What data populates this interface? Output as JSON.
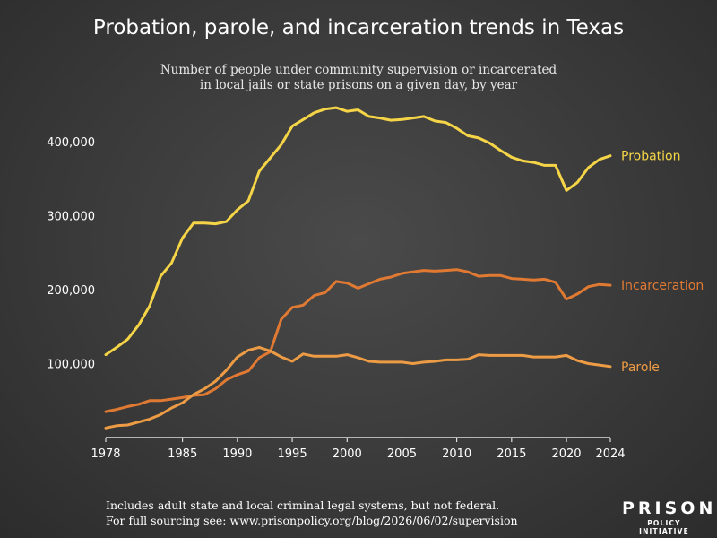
{
  "title": "Probation, parole, and incarceration trends in Texas",
  "subtitle_line1": "Number of people under community supervision or incarcerated",
  "subtitle_line2": "in local jails or state prisons on a given day, by year",
  "footer_line1": "Includes adult state and local criminal legal systems, but not federal.",
  "footer_line2": "For full sourcing see: www.prisonpolicy.org/blog/2026/06/02/supervision",
  "logo": {
    "main": "PRISON",
    "sub": "POLICY INITIATIVE"
  },
  "colors": {
    "probation": "#f5d547",
    "incarceration": "#e07a33",
    "parole": "#ed9c45",
    "text": "#ffffff"
  },
  "chart_data": {
    "type": "line",
    "xlim": [
      1978,
      2024
    ],
    "ylim": [
      0,
      470000
    ],
    "x_ticks": [
      "1978",
      "1985",
      "1990",
      "1995",
      "2000",
      "2005",
      "2010",
      "2015",
      "2020",
      "2024"
    ],
    "y_ticks": [
      "100,000",
      "200,000",
      "300,000",
      "400,000"
    ],
    "series": [
      {
        "name": "Probation",
        "key": "probation",
        "points": [
          [
            1978,
            112000
          ],
          [
            1979,
            122000
          ],
          [
            1980,
            133000
          ],
          [
            1981,
            152000
          ],
          [
            1982,
            178000
          ],
          [
            1983,
            218000
          ],
          [
            1984,
            236000
          ],
          [
            1985,
            270000
          ],
          [
            1986,
            290000
          ],
          [
            1987,
            290000
          ],
          [
            1988,
            289000
          ],
          [
            1989,
            292000
          ],
          [
            1990,
            308000
          ],
          [
            1991,
            320000
          ],
          [
            1992,
            360000
          ],
          [
            1993,
            378000
          ],
          [
            1994,
            396000
          ],
          [
            1995,
            421000
          ],
          [
            1996,
            430000
          ],
          [
            1997,
            439000
          ],
          [
            1998,
            444000
          ],
          [
            1999,
            446000
          ],
          [
            2000,
            441000
          ],
          [
            2001,
            443000
          ],
          [
            2002,
            434000
          ],
          [
            2003,
            432000
          ],
          [
            2004,
            429000
          ],
          [
            2005,
            430000
          ],
          [
            2006,
            432000
          ],
          [
            2007,
            434000
          ],
          [
            2008,
            428000
          ],
          [
            2009,
            426000
          ],
          [
            2010,
            418000
          ],
          [
            2011,
            408000
          ],
          [
            2012,
            405000
          ],
          [
            2013,
            398000
          ],
          [
            2014,
            388000
          ],
          [
            2015,
            379000
          ],
          [
            2016,
            374000
          ],
          [
            2017,
            372000
          ],
          [
            2018,
            368000
          ],
          [
            2019,
            368000
          ],
          [
            2020,
            334000
          ],
          [
            2021,
            345000
          ],
          [
            2022,
            365000
          ],
          [
            2023,
            376000
          ],
          [
            2024,
            381000
          ]
        ]
      },
      {
        "name": "Incarceration",
        "key": "incarceration",
        "points": [
          [
            1978,
            35000
          ],
          [
            1979,
            38000
          ],
          [
            1980,
            42000
          ],
          [
            1981,
            45000
          ],
          [
            1982,
            50000
          ],
          [
            1983,
            50000
          ],
          [
            1984,
            52000
          ],
          [
            1985,
            54000
          ],
          [
            1986,
            57000
          ],
          [
            1987,
            58000
          ],
          [
            1988,
            66000
          ],
          [
            1989,
            78000
          ],
          [
            1990,
            85000
          ],
          [
            1991,
            90000
          ],
          [
            1992,
            108000
          ],
          [
            1993,
            116000
          ],
          [
            1994,
            160000
          ],
          [
            1995,
            176000
          ],
          [
            1996,
            179000
          ],
          [
            1997,
            192000
          ],
          [
            1998,
            196000
          ],
          [
            1999,
            211000
          ],
          [
            2000,
            209000
          ],
          [
            2001,
            202000
          ],
          [
            2002,
            208000
          ],
          [
            2003,
            214000
          ],
          [
            2004,
            217000
          ],
          [
            2005,
            222000
          ],
          [
            2006,
            224000
          ],
          [
            2007,
            226000
          ],
          [
            2008,
            225000
          ],
          [
            2009,
            226000
          ],
          [
            2010,
            227000
          ],
          [
            2011,
            224000
          ],
          [
            2012,
            218000
          ],
          [
            2013,
            219000
          ],
          [
            2014,
            219000
          ],
          [
            2015,
            215000
          ],
          [
            2016,
            214000
          ],
          [
            2017,
            213000
          ],
          [
            2018,
            214000
          ],
          [
            2019,
            210000
          ],
          [
            2020,
            187000
          ],
          [
            2021,
            194000
          ],
          [
            2022,
            204000
          ],
          [
            2023,
            207000
          ],
          [
            2024,
            206000
          ]
        ]
      },
      {
        "name": "Parole",
        "key": "parole",
        "points": [
          [
            1978,
            13000
          ],
          [
            1979,
            16000
          ],
          [
            1980,
            17000
          ],
          [
            1981,
            21000
          ],
          [
            1982,
            25000
          ],
          [
            1983,
            31000
          ],
          [
            1984,
            40000
          ],
          [
            1985,
            47000
          ],
          [
            1986,
            58000
          ],
          [
            1987,
            66000
          ],
          [
            1988,
            76000
          ],
          [
            1989,
            91000
          ],
          [
            1990,
            109000
          ],
          [
            1991,
            118000
          ],
          [
            1992,
            122000
          ],
          [
            1993,
            117000
          ],
          [
            1994,
            109000
          ],
          [
            1995,
            103000
          ],
          [
            1996,
            113000
          ],
          [
            1997,
            110000
          ],
          [
            1998,
            110000
          ],
          [
            1999,
            110000
          ],
          [
            2000,
            112000
          ],
          [
            2001,
            108000
          ],
          [
            2002,
            103000
          ],
          [
            2003,
            102000
          ],
          [
            2004,
            102000
          ],
          [
            2005,
            102000
          ],
          [
            2006,
            100000
          ],
          [
            2007,
            102000
          ],
          [
            2008,
            103000
          ],
          [
            2009,
            105000
          ],
          [
            2010,
            105000
          ],
          [
            2011,
            106000
          ],
          [
            2012,
            112000
          ],
          [
            2013,
            111000
          ],
          [
            2014,
            111000
          ],
          [
            2015,
            111000
          ],
          [
            2016,
            111000
          ],
          [
            2017,
            109000
          ],
          [
            2018,
            109000
          ],
          [
            2019,
            109000
          ],
          [
            2020,
            111000
          ],
          [
            2021,
            104000
          ],
          [
            2022,
            100000
          ],
          [
            2023,
            98000
          ],
          [
            2024,
            96000
          ]
        ]
      }
    ],
    "end_labels": {
      "probation": "Probation",
      "incarceration": "Incarceration",
      "parole": "Parole"
    },
    "grid": false,
    "legend": "direct-labels-right"
  }
}
